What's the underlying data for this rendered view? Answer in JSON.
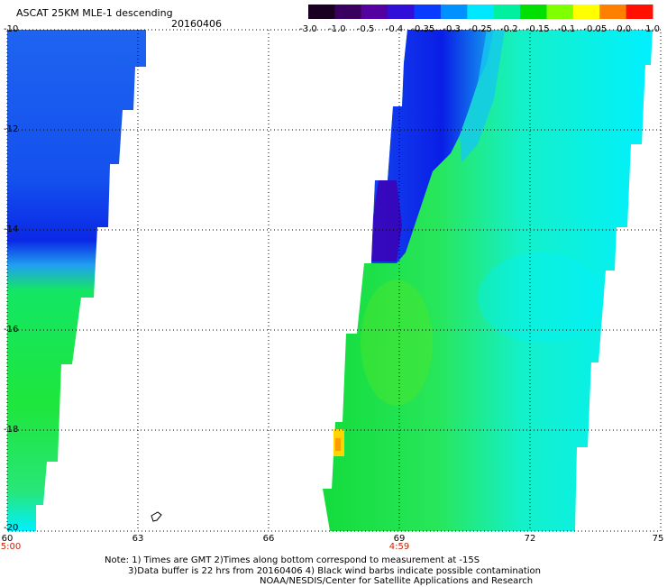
{
  "header": {
    "title": "ASCAT 25KM MLE-1 descending",
    "date": "20160406"
  },
  "colorbar": {
    "labels": [
      "-3.0",
      "-1.0",
      "-0.5",
      "-0.4",
      "-0.35",
      "-0.3",
      "-0.25",
      "-0.2",
      "-0.15",
      "-0.1",
      "-0.05",
      "0.0",
      "1.0"
    ],
    "colors": [
      "#1a0020",
      "#3a0060",
      "#5500a0",
      "#3010d8",
      "#0a3cff",
      "#0090ff",
      "#00e8ff",
      "#00f0a0",
      "#00e000",
      "#80ff00",
      "#ffff00",
      "#ff8000",
      "#ff1000"
    ]
  },
  "axes": {
    "y_ticks": [
      "-10",
      "-12",
      "-14",
      "-16",
      "-18",
      "-20"
    ],
    "x_ticks": [
      "60",
      "63",
      "66",
      "69",
      "72",
      "75"
    ],
    "time_labels": [
      "5:00",
      "4:59"
    ]
  },
  "notes": [
    "Note: 1) Times are GMT 2)Times along bottom correspond to measurement at -15S",
    "3)Data buffer is 22 hrs from 20160406 4) Black wind barbs indicate possible contamination",
    "NOAA/NESDIS/Center for Satellite Applications and Research"
  ],
  "palette": {
    "blue_deep": "#0a1ee6",
    "blue": "#1464f0",
    "cyan": "#00f0ff",
    "green": "#14e646",
    "yellow": "#ffd400",
    "purple": "#3c00b4"
  }
}
